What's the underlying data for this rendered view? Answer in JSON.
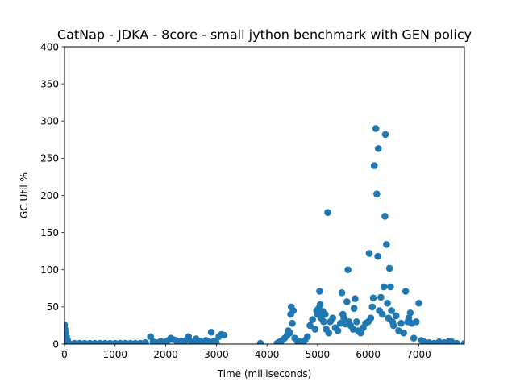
{
  "chart_data": {
    "type": "scatter",
    "title": "CatNap - JDKA - 8core -  small jython benchmark with GEN policy",
    "xlabel": "Time (milliseconds)",
    "ylabel": "GC Util %",
    "xlim": [
      0,
      7900
    ],
    "ylim": [
      0,
      400
    ],
    "xticks": [
      0,
      1000,
      2000,
      3000,
      4000,
      5000,
      6000,
      7000
    ],
    "yticks": [
      0,
      50,
      100,
      150,
      200,
      250,
      300,
      350,
      400
    ],
    "grid": false,
    "marker_color": "#1f77b4",
    "series": [
      {
        "points": [
          [
            0,
            26
          ],
          [
            10,
            20
          ],
          [
            25,
            15
          ],
          [
            40,
            10
          ],
          [
            55,
            6
          ],
          [
            70,
            3
          ],
          [
            90,
            1
          ],
          [
            200,
            1
          ],
          [
            300,
            1
          ],
          [
            400,
            1
          ],
          [
            500,
            1
          ],
          [
            600,
            1
          ],
          [
            700,
            1
          ],
          [
            800,
            1
          ],
          [
            900,
            1
          ],
          [
            1000,
            1
          ],
          [
            1100,
            1
          ],
          [
            1200,
            1
          ],
          [
            1300,
            1
          ],
          [
            1400,
            1
          ],
          [
            1500,
            1
          ],
          [
            1600,
            2
          ],
          [
            1700,
            10
          ],
          [
            1750,
            3
          ],
          [
            1800,
            2
          ],
          [
            1900,
            4
          ],
          [
            2000,
            3
          ],
          [
            2050,
            5
          ],
          [
            2100,
            8
          ],
          [
            2150,
            6
          ],
          [
            2200,
            5
          ],
          [
            2250,
            3
          ],
          [
            2300,
            4
          ],
          [
            2350,
            2
          ],
          [
            2400,
            5
          ],
          [
            2450,
            10
          ],
          [
            2500,
            3
          ],
          [
            2550,
            2
          ],
          [
            2600,
            7
          ],
          [
            2650,
            4
          ],
          [
            2700,
            3
          ],
          [
            2750,
            2
          ],
          [
            2800,
            5
          ],
          [
            2850,
            3
          ],
          [
            2900,
            16
          ],
          [
            2950,
            4
          ],
          [
            3000,
            2
          ],
          [
            3050,
            10
          ],
          [
            3100,
            13
          ],
          [
            3150,
            12
          ],
          [
            3870,
            1
          ],
          [
            4200,
            1
          ],
          [
            4250,
            3
          ],
          [
            4300,
            5
          ],
          [
            4350,
            8
          ],
          [
            4400,
            12
          ],
          [
            4420,
            18
          ],
          [
            4450,
            15
          ],
          [
            4470,
            40
          ],
          [
            4480,
            50
          ],
          [
            4500,
            28
          ],
          [
            4520,
            45
          ],
          [
            4550,
            8
          ],
          [
            4600,
            4
          ],
          [
            4650,
            3
          ],
          [
            4700,
            2
          ],
          [
            4750,
            5
          ],
          [
            4800,
            10
          ],
          [
            4850,
            25
          ],
          [
            4900,
            33
          ],
          [
            4950,
            20
          ],
          [
            4980,
            45
          ],
          [
            5000,
            40
          ],
          [
            5020,
            48
          ],
          [
            5040,
            71
          ],
          [
            5050,
            53
          ],
          [
            5070,
            35
          ],
          [
            5100,
            44
          ],
          [
            5120,
            30
          ],
          [
            5150,
            40
          ],
          [
            5170,
            20
          ],
          [
            5200,
            177
          ],
          [
            5220,
            15
          ],
          [
            5250,
            30
          ],
          [
            5300,
            35
          ],
          [
            5350,
            22
          ],
          [
            5400,
            18
          ],
          [
            5450,
            28
          ],
          [
            5480,
            69
          ],
          [
            5500,
            40
          ],
          [
            5520,
            35
          ],
          [
            5550,
            27
          ],
          [
            5580,
            57
          ],
          [
            5600,
            100
          ],
          [
            5620,
            30
          ],
          [
            5650,
            25
          ],
          [
            5700,
            20
          ],
          [
            5720,
            48
          ],
          [
            5740,
            61
          ],
          [
            5770,
            30
          ],
          [
            5800,
            18
          ],
          [
            5850,
            15
          ],
          [
            5900,
            22
          ],
          [
            5950,
            28
          ],
          [
            6000,
            30
          ],
          [
            6020,
            122
          ],
          [
            6050,
            35
          ],
          [
            6080,
            50
          ],
          [
            6100,
            62
          ],
          [
            6120,
            240
          ],
          [
            6150,
            290
          ],
          [
            6170,
            202
          ],
          [
            6190,
            118
          ],
          [
            6200,
            263
          ],
          [
            6220,
            45
          ],
          [
            6250,
            63
          ],
          [
            6280,
            40
          ],
          [
            6310,
            77
          ],
          [
            6330,
            172
          ],
          [
            6340,
            282
          ],
          [
            6360,
            134
          ],
          [
            6380,
            55
          ],
          [
            6400,
            35
          ],
          [
            6420,
            102
          ],
          [
            6440,
            77
          ],
          [
            6460,
            45
          ],
          [
            6480,
            30
          ],
          [
            6500,
            25
          ],
          [
            6550,
            38
          ],
          [
            6600,
            18
          ],
          [
            6650,
            28
          ],
          [
            6700,
            15
          ],
          [
            6740,
            71
          ],
          [
            6780,
            30
          ],
          [
            6800,
            35
          ],
          [
            6830,
            42
          ],
          [
            6860,
            28
          ],
          [
            6900,
            8
          ],
          [
            6950,
            30
          ],
          [
            7000,
            55
          ],
          [
            7050,
            5
          ],
          [
            7100,
            3
          ],
          [
            7200,
            2
          ],
          [
            7300,
            1
          ],
          [
            7400,
            3
          ],
          [
            7500,
            2
          ],
          [
            7600,
            4
          ],
          [
            7650,
            3
          ],
          [
            7750,
            1
          ],
          [
            7900,
            1
          ]
        ]
      }
    ]
  }
}
